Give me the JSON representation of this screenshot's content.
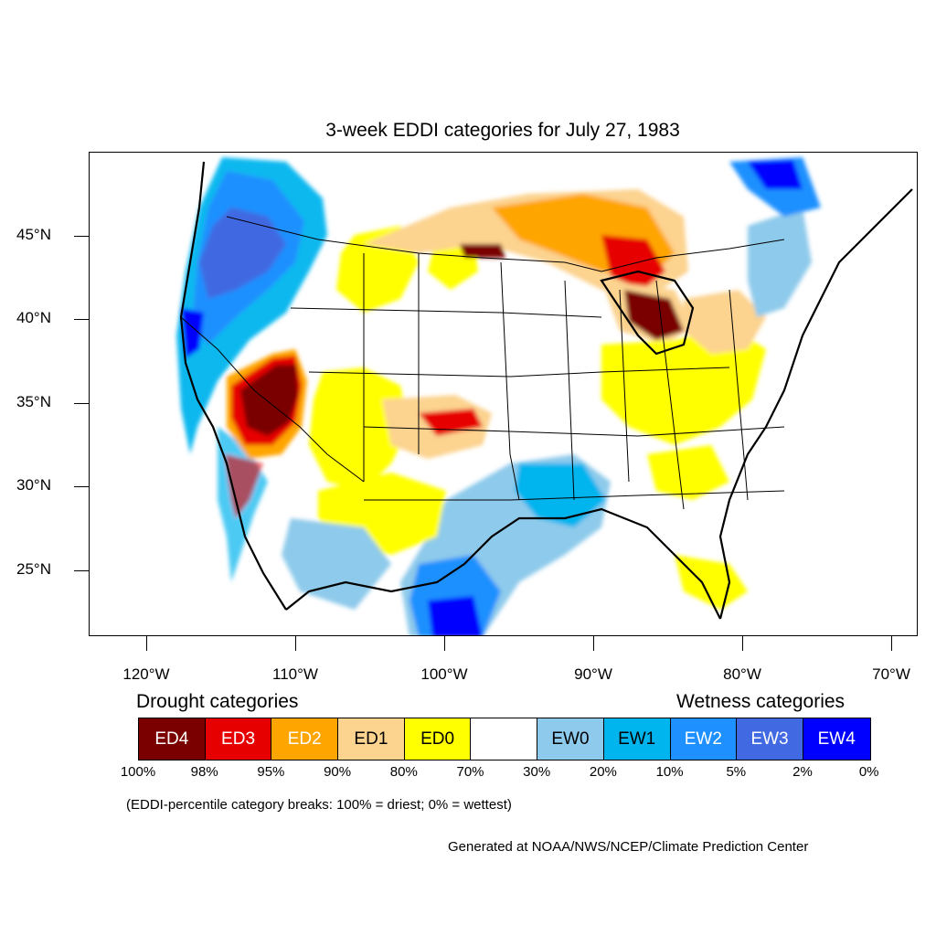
{
  "title": "3-week EDDI categories for July 27, 1983",
  "map": {
    "y_axis_labels": [
      "45°N",
      "40°N",
      "35°N",
      "30°N",
      "25°N"
    ],
    "x_axis_labels": [
      "120°W",
      "110°W",
      "100°W",
      "90°W",
      "80°W",
      "70°W"
    ],
    "projection": "lat-lon",
    "background": "#ffffff",
    "regions": [
      {
        "area": "Pacific Northwest coast",
        "category": "EW3"
      },
      {
        "area": "Northern California / Oregon",
        "category": "EW2"
      },
      {
        "area": "Great Basin (Nevada / Utah)",
        "category": "ED4"
      },
      {
        "area": "Southern California",
        "category": "ED3"
      },
      {
        "area": "Western Texas / New Mexico",
        "category": "ED0"
      },
      {
        "area": "Kansas",
        "category": "ED1"
      },
      {
        "area": "Eastern Texas / Gulf Coast",
        "category": "EW2"
      },
      {
        "area": "Arkansas / Mississippi",
        "category": "EW1"
      },
      {
        "area": "Upper Great Lakes / Ontario",
        "category": "ED3"
      },
      {
        "area": "Michigan",
        "category": "ED4"
      },
      {
        "area": "Ohio Valley / Mid-Atlantic",
        "category": "ED0"
      },
      {
        "area": "Northeast",
        "category": "EW1"
      },
      {
        "area": "Northern Quebec",
        "category": "EW4"
      }
    ]
  },
  "legend": {
    "drought_heading": "Drought categories",
    "wetness_heading": "Wetness categories",
    "categories": [
      {
        "label": "ED4",
        "color": "#7a0000",
        "text_color": "#ffffff"
      },
      {
        "label": "ED3",
        "color": "#e60000",
        "text_color": "#ffffff"
      },
      {
        "label": "ED2",
        "color": "#ffa500",
        "text_color": "#ffffff"
      },
      {
        "label": "ED1",
        "color": "#fcd38f",
        "text_color": "#000000"
      },
      {
        "label": "ED0",
        "color": "#ffff00",
        "text_color": "#000000"
      },
      {
        "label": "",
        "color": "#ffffff",
        "text_color": "#000000"
      },
      {
        "label": "EW0",
        "color": "#8ecaeb",
        "text_color": "#000000"
      },
      {
        "label": "EW1",
        "color": "#00b4ee",
        "text_color": "#000000"
      },
      {
        "label": "EW2",
        "color": "#1e90ff",
        "text_color": "#ffffff"
      },
      {
        "label": "EW3",
        "color": "#4169e1",
        "text_color": "#ffffff"
      },
      {
        "label": "EW4",
        "color": "#0000ff",
        "text_color": "#ffffff"
      }
    ],
    "breaks": [
      "100%",
      "98%",
      "95%",
      "90%",
      "80%",
      "70%",
      "30%",
      "20%",
      "10%",
      "5%",
      "2%",
      "0%"
    ]
  },
  "note": "(EDDI-percentile category breaks: 100% = driest; 0% = wettest)",
  "credit": "Generated at NOAA/NWS/NCEP/Climate Prediction Center"
}
